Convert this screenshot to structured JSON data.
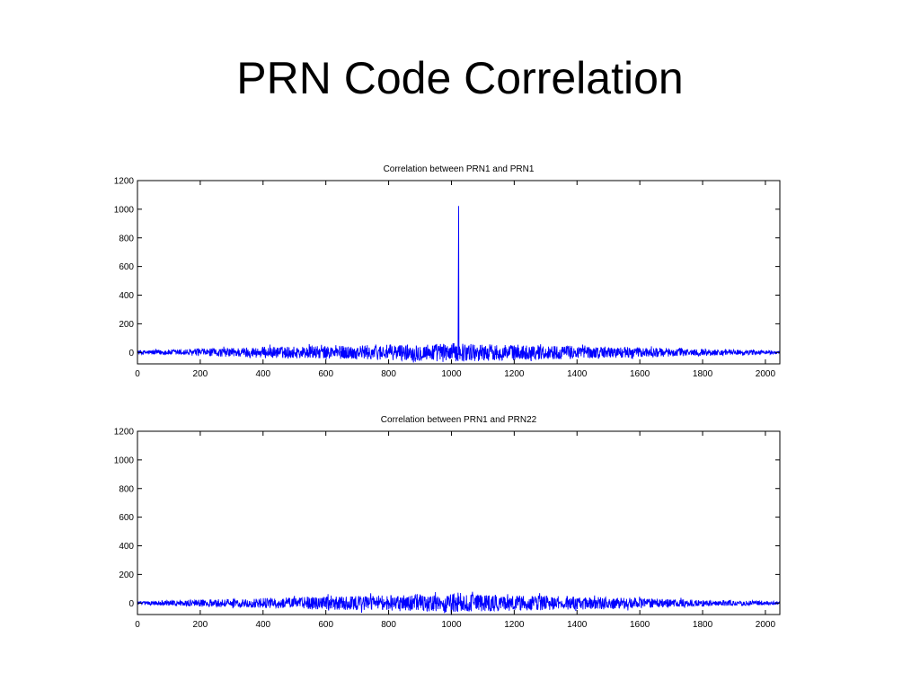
{
  "slide": {
    "title": "PRN Code Correlation"
  },
  "colors": {
    "series": "#0000ff",
    "axis": "#000000",
    "background": "#ffffff"
  },
  "chart_data": [
    {
      "type": "line",
      "title": "Correlation between PRN1 and PRN1",
      "xlabel": "",
      "ylabel": "",
      "xlim": [
        0,
        2046
      ],
      "ylim": [
        -80,
        1200
      ],
      "xticks": [
        0,
        200,
        400,
        600,
        800,
        1000,
        1200,
        1400,
        1600,
        1800,
        2000
      ],
      "yticks": [
        0,
        200,
        400,
        600,
        800,
        1000,
        1200
      ],
      "grid": false,
      "series": [
        {
          "noise_envelope": [
            [
              0,
              15
            ],
            [
              200,
              25
            ],
            [
              400,
              40
            ],
            [
              600,
              45
            ],
            [
              800,
              55
            ],
            [
              1000,
              65
            ],
            [
              1200,
              55
            ],
            [
              1400,
              45
            ],
            [
              1600,
              35
            ],
            [
              1800,
              25
            ],
            [
              2046,
              12
            ]
          ],
          "peaks": [
            {
              "x": 1022,
              "y": 500
            },
            {
              "x": 1023,
              "y": 1023
            }
          ]
        }
      ]
    },
    {
      "type": "line",
      "title": "Correlation between PRN1 and PRN22",
      "xlabel": "",
      "ylabel": "",
      "xlim": [
        0,
        2046
      ],
      "ylim": [
        -80,
        1200
      ],
      "xticks": [
        0,
        200,
        400,
        600,
        800,
        1000,
        1200,
        1400,
        1600,
        1800,
        2000
      ],
      "yticks": [
        0,
        200,
        400,
        600,
        800,
        1000,
        1200
      ],
      "grid": false,
      "series": [
        {
          "noise_envelope": [
            [
              0,
              12
            ],
            [
              200,
              25
            ],
            [
              400,
              35
            ],
            [
              600,
              45
            ],
            [
              800,
              55
            ],
            [
              1000,
              65
            ],
            [
              1200,
              55
            ],
            [
              1400,
              45
            ],
            [
              1600,
              35
            ],
            [
              1800,
              22
            ],
            [
              2046,
              12
            ]
          ],
          "peaks": []
        }
      ]
    }
  ]
}
